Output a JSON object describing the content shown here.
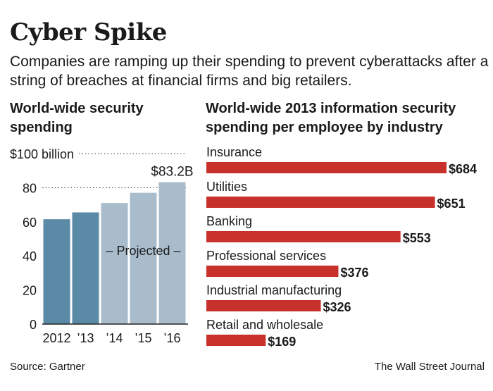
{
  "title": "Cyber Spike",
  "subtitle": "Companies are ramping up their spending to prevent cyberattacks after a string of breaches at financial firms and big retailers.",
  "source": "Source: Gartner",
  "credit": "The Wall Street Journal",
  "colors": {
    "actual": "#5b8aa6",
    "projected": "#a9bccb",
    "bar_red": "#c8302c",
    "text": "#1a1a1a"
  },
  "chart_data": [
    {
      "type": "bar",
      "title": "World-wide security spending",
      "categories": [
        "2012",
        "’13",
        "’14",
        "’15",
        "’16"
      ],
      "values": [
        61.5,
        65.5,
        71,
        77,
        83.2
      ],
      "projected": [
        false,
        false,
        true,
        true,
        true
      ],
      "projected_label": "– Projected –",
      "ylim": [
        0,
        100
      ],
      "yticks": [
        0,
        20,
        40,
        60,
        80,
        100
      ],
      "ytick_labels": [
        "0",
        "20",
        "40",
        "60",
        "80",
        "$100 billion"
      ],
      "data_label": "$83.2B",
      "grid": "dotted"
    },
    {
      "type": "bar",
      "orientation": "horizontal",
      "title": "World-wide 2013 information security spending per employee by industry",
      "categories": [
        "Insurance",
        "Utilities",
        "Banking",
        "Professional services",
        "Industrial manufacturing",
        "Retail and wholesale"
      ],
      "values": [
        684,
        651,
        553,
        376,
        326,
        169
      ],
      "value_labels": [
        "$684",
        "$651",
        "$553",
        "$376",
        "$326",
        "$169"
      ]
    }
  ]
}
